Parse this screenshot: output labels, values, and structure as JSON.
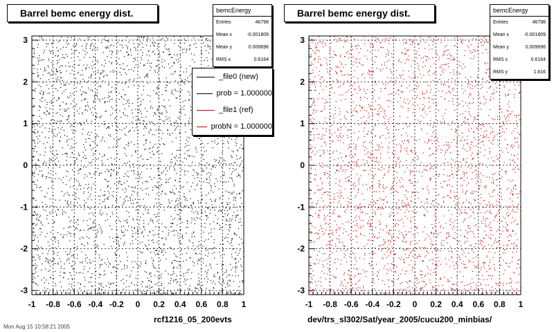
{
  "chart_data": [
    {
      "type": "scatter",
      "title": "Barrel bemc energy dist.",
      "xlim": [
        -1,
        1
      ],
      "ylim": [
        -3.1,
        3.1
      ],
      "x_ticks": [
        "-1",
        "-0.8",
        "-0.6",
        "-0.4",
        "-0.2",
        "0",
        "0.2",
        "0.4",
        "0.6",
        "0.8",
        "1"
      ],
      "y_ticks": [
        "3",
        "2",
        "1",
        "0",
        "-1",
        "-2",
        "-3"
      ],
      "grid": true,
      "series": [
        {
          "color": "#000000",
          "points": 3200
        }
      ],
      "stats": {
        "name": "bemcEnergy",
        "rows": [
          {
            "label": "Entries",
            "value": "46798"
          },
          {
            "label": "Mean x",
            "value": "-0.001809"
          },
          {
            "label": "Mean y",
            "value": "0.009696"
          },
          {
            "label": "RMS x",
            "value": "0.6164"
          }
        ]
      },
      "legend": {
        "placement": "top-right",
        "entries": [
          {
            "label": "_file0 (new)",
            "color": "#000000"
          },
          {
            "label": "prob = 1.000000",
            "color": "#000000"
          },
          {
            "label": "_file1 (ref)",
            "color": "#cc0000"
          },
          {
            "label": "probN = 1.000000",
            "color": "#cc0000"
          }
        ]
      },
      "footer": "rcf1216_05_200evts",
      "corner_text": "Mon Aug 15 10:58:21 2005"
    },
    {
      "type": "scatter",
      "title": "Barrel bemc energy dist.",
      "xlim": [
        -1,
        1
      ],
      "ylim": [
        -3.1,
        3.1
      ],
      "x_ticks": [
        "-1",
        "-0.8",
        "-0.6",
        "-0.4",
        "-0.2",
        "0",
        "0.2",
        "0.4",
        "0.6",
        "0.8",
        "1"
      ],
      "y_ticks": [
        "3",
        "2",
        "1",
        "0",
        "-1",
        "-2",
        "-3"
      ],
      "grid": true,
      "series": [
        {
          "color": "#cc0000",
          "points": 3200
        }
      ],
      "stats": {
        "name": "bemcEnergy",
        "rows": [
          {
            "label": "Entries",
            "value": "46798"
          },
          {
            "label": "Mean x",
            "value": "-0.001809"
          },
          {
            "label": "Mean y",
            "value": "0.009696"
          },
          {
            "label": "RMS x",
            "value": "0.6164"
          },
          {
            "label": "RMS y",
            "value": "1.816"
          }
        ]
      },
      "footer": "dev/trs_sl302/Sat/year_2005/cucu200_minbias/"
    }
  ]
}
